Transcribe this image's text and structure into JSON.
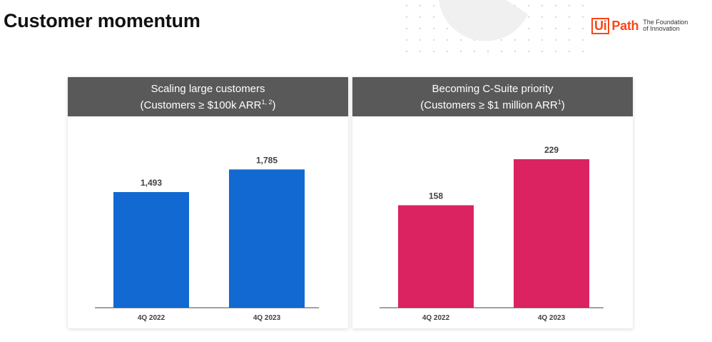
{
  "page": {
    "title": "Customer momentum"
  },
  "logo": {
    "brand_a": "Ui",
    "brand_b": "Path",
    "tagline_1": "The Foundation",
    "tagline_2": "of Innovation"
  },
  "chart_data": [
    {
      "type": "bar",
      "title": "Scaling large customers",
      "subtitle": "(Customers ≥ $100k ARR",
      "subtitle_sup": "1, 2",
      "subtitle_end": ")",
      "categories": [
        "4Q 2022",
        "4Q 2023"
      ],
      "values": [
        1493,
        1785
      ],
      "value_labels": [
        "1,493",
        "1,785"
      ],
      "ylim": [
        0,
        2470
      ],
      "bar_color": "#1169d1",
      "grid": false
    },
    {
      "type": "bar",
      "title": "Becoming C-Suite priority",
      "subtitle": "(Customers ≥ $1 million ARR",
      "subtitle_sup": "1",
      "subtitle_end": ")",
      "categories": [
        "4Q 2022",
        "4Q 2023"
      ],
      "values": [
        158,
        229
      ],
      "value_labels": [
        "158",
        "229"
      ],
      "ylim": [
        0,
        295
      ],
      "bar_color": "#db2361",
      "grid": false
    }
  ]
}
